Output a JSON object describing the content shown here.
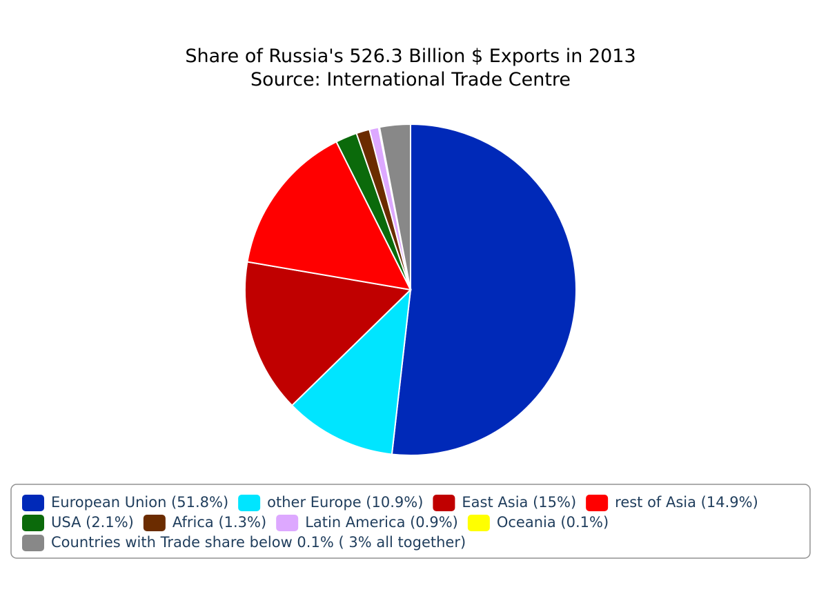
{
  "chart_data": {
    "type": "pie",
    "title": "Share of Russia's 526.3 Billion $ Exports in 2013",
    "subtitle": "Source: International Trade Centre",
    "categories": [
      "European Union (51.8%)",
      "other Europe (10.9%)",
      "East Asia (15%)",
      "rest of Asia (14.9%)",
      "USA (2.1%)",
      "Africa (1.3%)",
      "Latin America (0.9%)",
      "Oceania (0.1%)",
      "Countries with Trade share below 0.1% ( 3% all together)"
    ],
    "values": [
      51.8,
      10.9,
      15,
      14.9,
      2.1,
      1.3,
      0.9,
      0.1,
      3
    ],
    "colors": [
      "#0029b8",
      "#00e5ff",
      "#c00000",
      "#ff0000",
      "#0b6a0b",
      "#6b2c00",
      "#dda8ff",
      "#ffff00",
      "#888888"
    ],
    "legend": "bottom"
  }
}
